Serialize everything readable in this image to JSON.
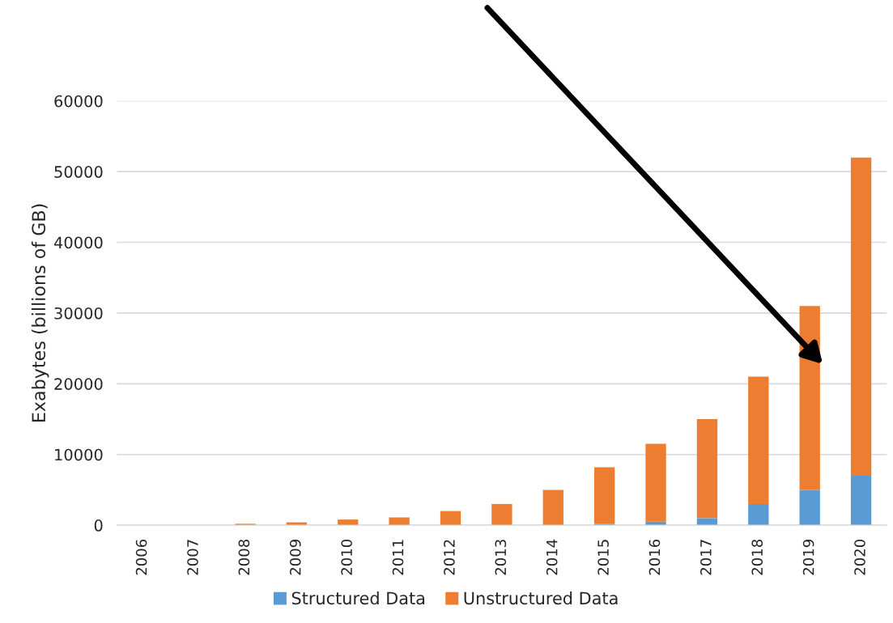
{
  "chart_data": {
    "type": "bar",
    "stacked": true,
    "ylabel": "Exabytes (billions of GB)",
    "categories": [
      "2006",
      "2007",
      "2008",
      "2009",
      "2010",
      "2011",
      "2012",
      "2013",
      "2014",
      "2015",
      "2016",
      "2017",
      "2018",
      "2019",
      "2020"
    ],
    "series": [
      {
        "name": "Structured Data",
        "color": "#5b9bd5",
        "values": [
          null,
          null,
          null,
          null,
          null,
          null,
          null,
          null,
          null,
          200,
          500,
          1000,
          3000,
          5000,
          7000
        ]
      },
      {
        "name": "Unstructured Data",
        "color": "#ed7d31",
        "values": [
          null,
          null,
          200,
          400,
          800,
          1100,
          2000,
          3000,
          5000,
          8000,
          11000,
          14000,
          18000,
          26000,
          45000
        ]
      }
    ],
    "ylim": [
      0,
      60000
    ],
    "yticks": [
      0,
      10000,
      20000,
      30000,
      40000,
      50000,
      60000
    ],
    "grid": "y",
    "legend": "bottom"
  }
}
